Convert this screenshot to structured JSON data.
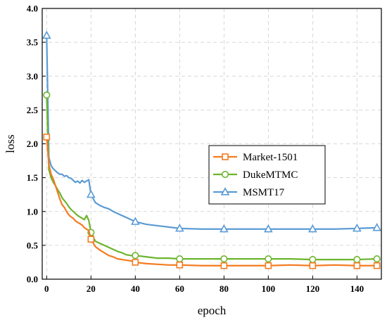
{
  "chart_data": {
    "type": "line",
    "title": "",
    "xlabel": "epoch",
    "ylabel": "loss",
    "xlim": [
      -2,
      151
    ],
    "ylim": [
      0,
      4.0
    ],
    "x_ticks": [
      0,
      20,
      40,
      60,
      80,
      100,
      120,
      140
    ],
    "x_tick_labels": [
      "0",
      "20",
      "40",
      "60",
      "80",
      "100",
      "120",
      "140"
    ],
    "y_ticks": [
      0,
      0.5,
      1.0,
      1.5,
      2.0,
      2.5,
      3.0,
      3.5,
      4.0
    ],
    "y_tick_labels": [
      "0.0",
      "0.5",
      "1.0",
      "1.5",
      "2.0",
      "2.5",
      "3.0",
      "3.5",
      "4.0"
    ],
    "grid": true,
    "legend_position": "right-center",
    "series": [
      {
        "name": "Market-1501",
        "color": "#f47b20",
        "marker": "square",
        "marker_x": [
          0,
          20,
          40,
          60,
          80,
          100,
          120,
          140,
          149
        ],
        "x": [
          0,
          1,
          2,
          3,
          4,
          5,
          6,
          7,
          8,
          9,
          10,
          11,
          12,
          13,
          14,
          15,
          16,
          17,
          18,
          19,
          20,
          22,
          24,
          26,
          28,
          30,
          32,
          34,
          36,
          38,
          40,
          45,
          50,
          55,
          60,
          70,
          80,
          90,
          100,
          110,
          120,
          130,
          140,
          149
        ],
        "y": [
          2.1,
          1.7,
          1.55,
          1.48,
          1.38,
          1.28,
          1.18,
          1.1,
          1.06,
          1.0,
          0.95,
          0.92,
          0.9,
          0.86,
          0.84,
          0.82,
          0.8,
          0.76,
          0.74,
          0.72,
          0.59,
          0.48,
          0.43,
          0.39,
          0.35,
          0.33,
          0.3,
          0.29,
          0.28,
          0.27,
          0.25,
          0.23,
          0.22,
          0.21,
          0.21,
          0.2,
          0.2,
          0.2,
          0.2,
          0.21,
          0.2,
          0.21,
          0.2,
          0.2
        ]
      },
      {
        "name": "DukeMTMC",
        "color": "#6cb52d",
        "marker": "circle",
        "marker_x": [
          0,
          20,
          40,
          60,
          80,
          100,
          120,
          140,
          149
        ],
        "x": [
          0,
          1,
          2,
          3,
          4,
          5,
          6,
          7,
          8,
          9,
          10,
          11,
          12,
          13,
          14,
          15,
          16,
          17,
          18,
          19,
          20,
          22,
          24,
          26,
          28,
          30,
          32,
          34,
          36,
          38,
          40,
          45,
          50,
          55,
          60,
          70,
          80,
          90,
          100,
          110,
          120,
          130,
          140,
          149
        ],
        "y": [
          2.72,
          1.62,
          1.5,
          1.43,
          1.38,
          1.32,
          1.27,
          1.2,
          1.16,
          1.12,
          1.07,
          1.03,
          1.0,
          0.97,
          0.94,
          0.92,
          0.9,
          0.88,
          0.94,
          0.87,
          0.69,
          0.56,
          0.53,
          0.5,
          0.47,
          0.44,
          0.41,
          0.39,
          0.36,
          0.35,
          0.35,
          0.33,
          0.31,
          0.31,
          0.3,
          0.3,
          0.3,
          0.3,
          0.3,
          0.3,
          0.29,
          0.29,
          0.29,
          0.3
        ]
      },
      {
        "name": "MSMT17",
        "color": "#5b9bd5",
        "marker": "triangle",
        "marker_x": [
          0,
          20,
          40,
          60,
          80,
          100,
          120,
          140,
          149
        ],
        "x": [
          0,
          1,
          2,
          3,
          4,
          5,
          6,
          7,
          8,
          9,
          10,
          11,
          12,
          13,
          14,
          15,
          16,
          17,
          18,
          19,
          20,
          22,
          24,
          26,
          28,
          30,
          32,
          34,
          36,
          38,
          40,
          45,
          50,
          55,
          60,
          70,
          80,
          90,
          100,
          110,
          120,
          130,
          140,
          149
        ],
        "y": [
          3.6,
          1.8,
          1.68,
          1.63,
          1.6,
          1.57,
          1.55,
          1.55,
          1.52,
          1.53,
          1.5,
          1.49,
          1.46,
          1.43,
          1.45,
          1.42,
          1.46,
          1.43,
          1.45,
          1.47,
          1.25,
          1.13,
          1.09,
          1.06,
          1.04,
          1.0,
          0.97,
          0.94,
          0.91,
          0.88,
          0.85,
          0.81,
          0.79,
          0.77,
          0.75,
          0.74,
          0.74,
          0.74,
          0.74,
          0.74,
          0.74,
          0.74,
          0.75,
          0.76
        ]
      }
    ]
  }
}
